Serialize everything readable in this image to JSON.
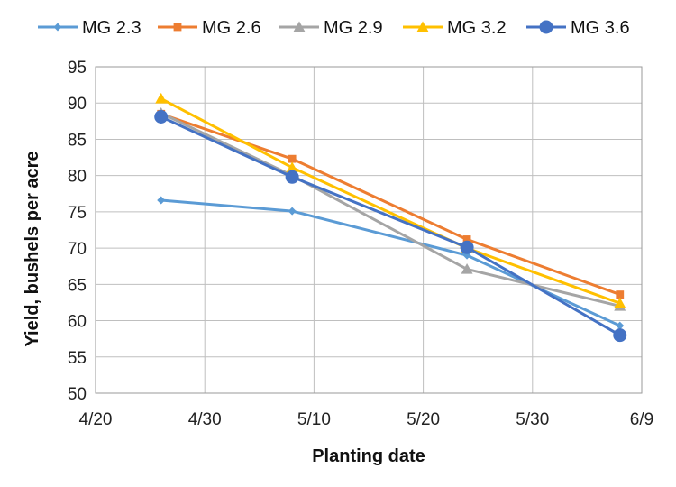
{
  "chart_data": {
    "type": "line",
    "xlabel": "Planting date",
    "ylabel": "Yield, bushels per acre",
    "x_ticks": [
      "4/20",
      "4/30",
      "5/10",
      "5/20",
      "5/30",
      "6/9"
    ],
    "xlim": [
      "4/20",
      "6/9"
    ],
    "ylim": [
      50,
      95
    ],
    "y_ticks": [
      50,
      55,
      60,
      65,
      70,
      75,
      80,
      85,
      90,
      95
    ],
    "grid": true,
    "legend_position": "top",
    "x": [
      "4/26",
      "5/8",
      "5/24",
      "6/7"
    ],
    "series": [
      {
        "name": "MG 2.3",
        "color": "#5B9BD5",
        "marker": "diamond",
        "values": [
          76.6,
          75.1,
          69.0,
          59.3
        ]
      },
      {
        "name": "MG 2.6",
        "color": "#ED7D31",
        "marker": "square",
        "values": [
          88.5,
          82.3,
          71.2,
          63.6
        ]
      },
      {
        "name": "MG 2.9",
        "color": "#A5A5A5",
        "marker": "triangle",
        "values": [
          88.6,
          80.0,
          67.1,
          62.0
        ]
      },
      {
        "name": "MG 3.2",
        "color": "#FFC000",
        "marker": "triangle",
        "values": [
          90.6,
          81.1,
          70.0,
          62.4
        ]
      },
      {
        "name": "MG 3.6",
        "color": "#4472C4",
        "marker": "circle",
        "values": [
          88.1,
          79.8,
          70.1,
          58.0
        ]
      }
    ]
  }
}
